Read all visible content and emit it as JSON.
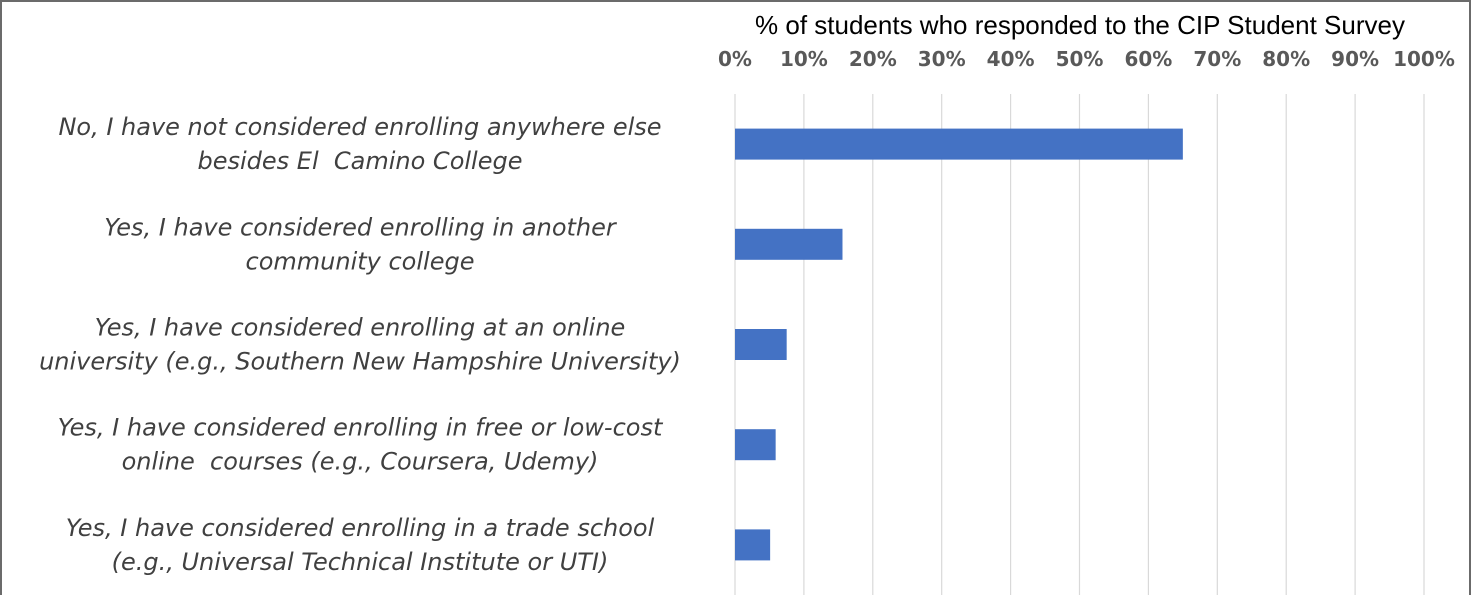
{
  "chart_data": {
    "type": "bar",
    "orientation": "horizontal",
    "xlabel": "% of students who responded to the CIP Student Survey",
    "xlabel_position": "top",
    "xlim": [
      0,
      100
    ],
    "xticks": [
      "0%",
      "10%",
      "20%",
      "30%",
      "40%",
      "50%",
      "60%",
      "70%",
      "80%",
      "90%",
      "100%"
    ],
    "grid": "vertical",
    "categories": [
      [
        "No, I have not considered enrolling anywhere else",
        "besides El  Camino College"
      ],
      [
        "Yes, I have considered enrolling in another",
        "community college"
      ],
      [
        "Yes, I have considered enrolling at an online",
        "university (e.g., Southern New Hampshire University)"
      ],
      [
        "Yes, I have considered enrolling in free or low-cost",
        "online  courses (e.g., Coursera, Udemy)"
      ],
      [
        "Yes, I have considered enrolling in a trade school",
        "(e.g., Universal Technical Institute or UTI)"
      ]
    ],
    "values": [
      65,
      15.6,
      7.5,
      5.9,
      5.1
    ],
    "bar_color": "#4472C4"
  }
}
